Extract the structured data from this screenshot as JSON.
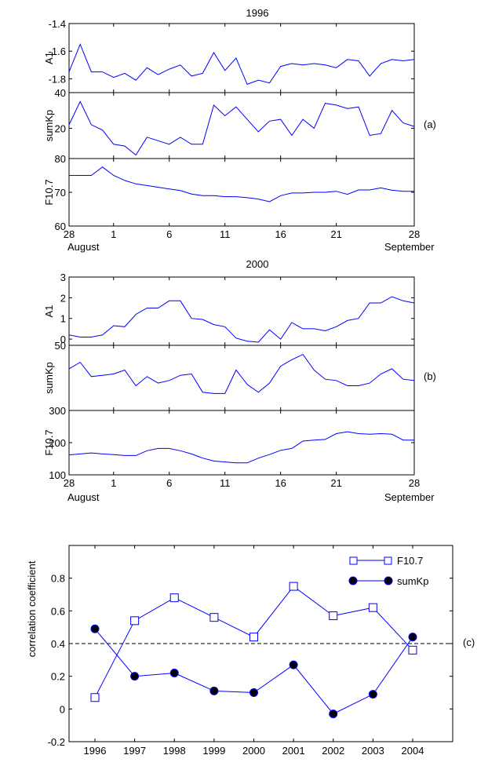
{
  "colors": {
    "series": "#0000ff",
    "axis": "#000000",
    "marker_fill_sumkp": "#000000",
    "reference_line": "#000000"
  },
  "chart_data": [
    {
      "type": "line",
      "title": "1996",
      "tag": "(a)",
      "x": [
        28,
        29,
        30,
        31,
        1,
        2,
        3,
        4,
        5,
        6,
        7,
        8,
        9,
        10,
        11,
        12,
        13,
        14,
        15,
        16,
        17,
        18,
        19,
        20,
        21,
        22,
        23,
        24,
        25,
        26,
        27,
        28
      ],
      "x_tick_labels": [
        "28",
        "1",
        "6",
        "11",
        "16",
        "21",
        "28"
      ],
      "x_tick_sublabels": [
        "August",
        "September"
      ],
      "panels": [
        {
          "ylabel": "A1",
          "ylim": [
            -1.9,
            -1.4
          ],
          "y_ticks": [
            "-1.4",
            "-1.6",
            "-1.8"
          ],
          "values": [
            -1.75,
            -1.55,
            -1.75,
            -1.75,
            -1.79,
            -1.76,
            -1.81,
            -1.72,
            -1.77,
            -1.73,
            -1.7,
            -1.78,
            -1.76,
            -1.61,
            -1.74,
            -1.65,
            -1.84,
            -1.81,
            -1.83,
            -1.71,
            -1.69,
            -1.7,
            -1.69,
            -1.7,
            -1.72,
            -1.66,
            -1.67,
            -1.78,
            -1.69,
            -1.66,
            -1.67,
            -1.66
          ]
        },
        {
          "ylabel": "sumKp",
          "ylim": [
            3,
            40
          ],
          "y_ticks": [
            "40",
            "20"
          ],
          "values": [
            22,
            35,
            22,
            19,
            11,
            10,
            5,
            15,
            13,
            11,
            15,
            11,
            11,
            33,
            27,
            32,
            25,
            18,
            24,
            25,
            16,
            25,
            20,
            34,
            33,
            31,
            32,
            16,
            17,
            30,
            23,
            21
          ]
        },
        {
          "ylabel": "F10.7",
          "ylim": [
            60,
            80
          ],
          "y_ticks": [
            "80",
            "70",
            "60"
          ],
          "values": [
            75,
            75,
            75,
            77.5,
            75,
            73.5,
            72.5,
            72,
            71.5,
            71,
            70.5,
            69.5,
            69,
            69,
            68.7,
            68.7,
            68.4,
            68,
            67.2,
            69,
            69.8,
            69.8,
            70,
            70,
            70.3,
            69.4,
            70.7,
            70.7,
            71.3,
            70.6,
            70.3,
            70.3
          ]
        }
      ]
    },
    {
      "type": "line",
      "title": "2000",
      "tag": "(b)",
      "x": [
        28,
        29,
        30,
        31,
        1,
        2,
        3,
        4,
        5,
        6,
        7,
        8,
        9,
        10,
        11,
        12,
        13,
        14,
        15,
        16,
        17,
        18,
        19,
        20,
        21,
        22,
        23,
        24,
        25,
        26,
        27,
        28
      ],
      "x_tick_labels": [
        "28",
        "1",
        "6",
        "11",
        "16",
        "21",
        "28"
      ],
      "x_tick_sublabels": [
        "August",
        "September"
      ],
      "panels": [
        {
          "ylabel": "A1",
          "ylim": [
            -0.3,
            3
          ],
          "y_ticks": [
            "3",
            "2",
            "1",
            "0"
          ],
          "values": [
            0.2,
            0.1,
            0.1,
            0.2,
            0.65,
            0.6,
            1.2,
            1.5,
            1.5,
            1.85,
            1.85,
            1.0,
            0.95,
            0.7,
            0.6,
            0.05,
            -0.1,
            -0.15,
            0.45,
            0.0,
            0.8,
            0.5,
            0.5,
            0.4,
            0.6,
            0.9,
            1.0,
            1.75,
            1.75,
            2.05,
            1.85,
            1.75
          ]
        },
        {
          "ylabel": "sumKp",
          "ylim": [
            0,
            50
          ],
          "y_ticks": [
            "50"
          ],
          "values": [
            32,
            37,
            26,
            27,
            28,
            31,
            19,
            26,
            21,
            23,
            27,
            28,
            14,
            13,
            13,
            31,
            20,
            14,
            21,
            34,
            39,
            43,
            31,
            24,
            23,
            19,
            19,
            21,
            28,
            32,
            24,
            23
          ]
        },
        {
          "ylabel": "F10.7",
          "ylim": [
            100,
            300
          ],
          "y_ticks": [
            "300",
            "200",
            "100"
          ],
          "values": [
            162,
            165,
            168,
            165,
            163,
            160,
            160,
            175,
            182,
            182,
            175,
            165,
            152,
            143,
            140,
            137,
            137,
            152,
            163,
            176,
            182,
            205,
            208,
            210,
            228,
            234,
            228,
            226,
            228,
            226,
            208,
            208
          ]
        }
      ]
    },
    {
      "type": "line",
      "tag": "(c)",
      "ylabel": "correlation coefficient",
      "categories": [
        "1996",
        "1997",
        "1998",
        "1999",
        "2000",
        "2001",
        "2002",
        "2003",
        "2004"
      ],
      "ylim": [
        -0.2,
        1.0
      ],
      "y_ticks": [
        "-0.2",
        "0",
        "0.2",
        "0.4",
        "0.6",
        "0.8"
      ],
      "reference_line": 0.4,
      "legend_position": "top-right",
      "series": [
        {
          "name": "F10.7",
          "marker": "open-square",
          "values": [
            0.07,
            0.54,
            0.68,
            0.56,
            0.44,
            0.75,
            0.57,
            0.62,
            0.36
          ]
        },
        {
          "name": "sumKp",
          "marker": "filled-circle",
          "values": [
            0.49,
            0.2,
            0.22,
            0.11,
            0.1,
            0.27,
            -0.03,
            0.09,
            0.44
          ]
        }
      ]
    }
  ]
}
